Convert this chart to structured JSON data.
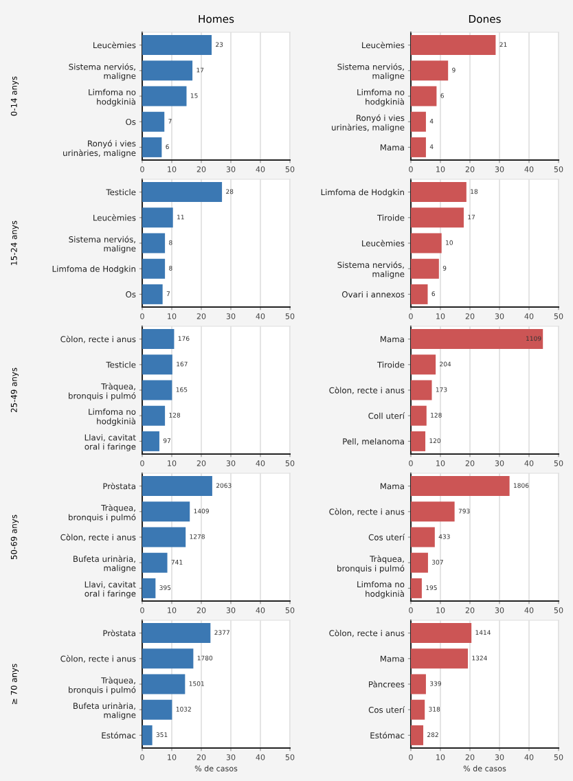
{
  "chart_data": [
    {
      "type": "bar",
      "orientation": "horizontal",
      "title": "Homes",
      "ylabel": "0-14 anys",
      "categories": [
        "Leucèmies",
        "Sistema nerviós,\nmaligne",
        "Limfoma no\nhodgkinià",
        "Os",
        "Ronyó i vies\nurinàries, maligne"
      ],
      "values": [
        23.5,
        17,
        15,
        7.5,
        6.6
      ],
      "color": "#3b78b3",
      "xlim": [
        0,
        50
      ],
      "xticks": [
        0,
        10,
        20,
        30,
        40,
        50
      ],
      "grid": "x",
      "annotations": [
        {
          "text": "23",
          "x": 23.5,
          "y": "Leucèmies"
        },
        {
          "text": "17",
          "x": 17,
          "y": "Sistema nerviós,\nmaligne"
        },
        {
          "text": "15",
          "x": 15,
          "y": "Limfoma no\nhodgkinià"
        },
        {
          "text": "7",
          "x": 7.5,
          "y": "Os"
        },
        {
          "text": "6",
          "x": 6.6,
          "y": "Ronyó i vies\nurinàries, maligne"
        }
      ]
    },
    {
      "type": "bar",
      "orientation": "horizontal",
      "title": "Dones",
      "categories": [
        "Leucèmies",
        "Sistema nerviós,\nmaligne",
        "Limfoma no\nhodgkinià",
        "Ronyó i vies\nurinàries, maligne",
        "Mama"
      ],
      "values": [
        28.7,
        12.6,
        8.7,
        5.1,
        5.1
      ],
      "color": "#cc5555",
      "xlim": [
        0,
        50
      ],
      "xticks": [
        0,
        10,
        20,
        30,
        40,
        50
      ],
      "grid": "x",
      "annotations": [
        {
          "text": "21",
          "x": 28.7,
          "y": "Leucèmies"
        },
        {
          "text": "9",
          "x": 12.6,
          "y": "Sistema nerviós,\nmaligne"
        },
        {
          "text": "6",
          "x": 8.7,
          "y": "Limfoma no\nhodgkinià"
        },
        {
          "text": "4",
          "x": 5.1,
          "y": "Ronyó i vies\nurinàries, maligne"
        },
        {
          "text": "4",
          "x": 5.1,
          "y": "Mama"
        }
      ]
    },
    {
      "type": "bar",
      "orientation": "horizontal",
      "ylabel": "15-24 anys",
      "categories": [
        "Testicle",
        "Leucèmies",
        "Sistema nerviós,\nmaligne",
        "Limfoma de Hodgkin",
        "Os"
      ],
      "values": [
        27,
        10.4,
        7.7,
        7.7,
        6.9
      ],
      "color": "#3b78b3",
      "xlim": [
        0,
        50
      ],
      "xticks": [
        0,
        10,
        20,
        30,
        40,
        50
      ],
      "grid": "x",
      "annotations": [
        {
          "text": "28",
          "x": 27,
          "y": "Testicle"
        },
        {
          "text": "11",
          "x": 10.4,
          "y": "Leucèmies"
        },
        {
          "text": "8",
          "x": 7.7,
          "y": "Sistema nerviós,\nmaligne"
        },
        {
          "text": "8",
          "x": 7.7,
          "y": "Limfoma de Hodgkin"
        },
        {
          "text": "7",
          "x": 6.9,
          "y": "Os"
        }
      ]
    },
    {
      "type": "bar",
      "orientation": "horizontal",
      "categories": [
        "Limfoma de Hodgkin",
        "Tiroide",
        "Leucèmies",
        "Sistema nerviós,\nmaligne",
        "Ovari i annexos"
      ],
      "values": [
        18.8,
        17.9,
        10.4,
        9.5,
        5.7
      ],
      "color": "#cc5555",
      "xlim": [
        0,
        50
      ],
      "xticks": [
        0,
        10,
        20,
        30,
        40,
        50
      ],
      "grid": "x",
      "annotations": [
        {
          "text": "18",
          "x": 18.8,
          "y": "Limfoma de Hodgkin"
        },
        {
          "text": "17",
          "x": 17.9,
          "y": "Tiroide"
        },
        {
          "text": "10",
          "x": 10.4,
          "y": "Leucèmies"
        },
        {
          "text": "9",
          "x": 9.5,
          "y": "Sistema nerviós,\nmaligne"
        },
        {
          "text": "6",
          "x": 5.7,
          "y": "Ovari i annexos"
        }
      ]
    },
    {
      "type": "bar",
      "orientation": "horizontal",
      "ylabel": "25-49 anys",
      "categories": [
        "Còlon, recte i anus",
        "Testicle",
        "Tràquea,\nbronquis i pulmó",
        "Limfoma no\nhodgkinià",
        "Llavi, cavitat\noral i faringe"
      ],
      "values": [
        10.8,
        10.2,
        10.1,
        7.7,
        5.8
      ],
      "color": "#3b78b3",
      "xlim": [
        0,
        50
      ],
      "xticks": [
        0,
        10,
        20,
        30,
        40,
        50
      ],
      "grid": "x",
      "annotations": [
        {
          "text": "176",
          "x": 10.8,
          "y": "Còlon, recte i anus"
        },
        {
          "text": "167",
          "x": 10.2,
          "y": "Testicle"
        },
        {
          "text": "165",
          "x": 10.1,
          "y": "Tràquea,\nbronquis i pulmó"
        },
        {
          "text": "128",
          "x": 7.7,
          "y": "Limfoma no\nhodgkinià"
        },
        {
          "text": "97",
          "x": 5.8,
          "y": "Llavi, cavitat\noral i faringe"
        }
      ]
    },
    {
      "type": "bar",
      "orientation": "horizontal",
      "categories": [
        "Mama",
        "Tiroide",
        "Còlon, recte i anus",
        "Coll uterí",
        "Pell, melanoma"
      ],
      "values": [
        44.7,
        8.4,
        7.1,
        5.3,
        4.9
      ],
      "color": "#cc5555",
      "xlim": [
        0,
        50
      ],
      "xticks": [
        0,
        10,
        20,
        30,
        40,
        50
      ],
      "grid": "x",
      "annotations": [
        {
          "text": "1109",
          "x": 44.7,
          "y": "Mama"
        },
        {
          "text": "204",
          "x": 8.4,
          "y": "Tiroide"
        },
        {
          "text": "173",
          "x": 7.1,
          "y": "Còlon, recte i anus"
        },
        {
          "text": "128",
          "x": 5.3,
          "y": "Coll uterí"
        },
        {
          "text": "120",
          "x": 4.9,
          "y": "Pell, melanoma"
        }
      ]
    },
    {
      "type": "bar",
      "orientation": "horizontal",
      "ylabel": "50-69 anys",
      "categories": [
        "Pròstata",
        "Tràquea,\nbronquis i pulmó",
        "Còlon, recte i anus",
        "Bufeta urinària,\nmaligne",
        "Llavi, cavitat\noral i faringe"
      ],
      "values": [
        23.7,
        16.1,
        14.7,
        8.5,
        4.5
      ],
      "color": "#3b78b3",
      "xlim": [
        0,
        50
      ],
      "xticks": [
        0,
        10,
        20,
        30,
        40,
        50
      ],
      "grid": "x",
      "annotations": [
        {
          "text": "2063",
          "x": 23.7,
          "y": "Pròstata"
        },
        {
          "text": "1409",
          "x": 16.1,
          "y": "Tràquea,\nbronquis i pulmó"
        },
        {
          "text": "1278",
          "x": 14.7,
          "y": "Còlon, recte i anus"
        },
        {
          "text": "741",
          "x": 8.5,
          "y": "Bufeta urinària,\nmaligne"
        },
        {
          "text": "395",
          "x": 4.5,
          "y": "Llavi, cavitat\noral i faringe"
        }
      ]
    },
    {
      "type": "bar",
      "orientation": "horizontal",
      "categories": [
        "Mama",
        "Còlon, recte i anus",
        "Cos uterí",
        "Tràquea,\nbronquis i pulmó",
        "Limfoma no\nhodgkinià"
      ],
      "values": [
        33.4,
        14.8,
        8.1,
        5.8,
        3.7
      ],
      "color": "#cc5555",
      "xlim": [
        0,
        50
      ],
      "xticks": [
        0,
        10,
        20,
        30,
        40,
        50
      ],
      "grid": "x",
      "annotations": [
        {
          "text": "1806",
          "x": 33.4,
          "y": "Mama"
        },
        {
          "text": "793",
          "x": 14.8,
          "y": "Còlon, recte i anus"
        },
        {
          "text": "433",
          "x": 8.1,
          "y": "Cos uterí"
        },
        {
          "text": "307",
          "x": 5.8,
          "y": "Tràquea,\nbronquis i pulmó"
        },
        {
          "text": "195",
          "x": 3.7,
          "y": "Limfoma no\nhodgkinià"
        }
      ]
    },
    {
      "type": "bar",
      "orientation": "horizontal",
      "ylabel": "≥ 70 anys",
      "xlabel": "% de casos",
      "categories": [
        "Pròstata",
        "Còlon, recte i anus",
        "Tràquea,\nbronquis i pulmó",
        "Bufeta urinària,\nmaligne",
        "Estómac"
      ],
      "values": [
        23.1,
        17.3,
        14.5,
        10.1,
        3.4
      ],
      "color": "#3b78b3",
      "xlim": [
        0,
        50
      ],
      "xticks": [
        0,
        10,
        20,
        30,
        40,
        50
      ],
      "grid": "x",
      "annotations": [
        {
          "text": "2377",
          "x": 23.1,
          "y": "Pròstata"
        },
        {
          "text": "1780",
          "x": 17.3,
          "y": "Còlon, recte i anus"
        },
        {
          "text": "1501",
          "x": 14.5,
          "y": "Tràquea,\nbronquis i pulmó"
        },
        {
          "text": "1032",
          "x": 10.1,
          "y": "Bufeta urinària,\nmaligne"
        },
        {
          "text": "351",
          "x": 3.4,
          "y": "Estómac"
        }
      ]
    },
    {
      "type": "bar",
      "orientation": "horizontal",
      "xlabel": "% de casos",
      "categories": [
        "Còlon, recte i anus",
        "Mama",
        "Pàncrees",
        "Cos uterí",
        "Estómac"
      ],
      "values": [
        20.5,
        19.3,
        5.1,
        4.7,
        4.2
      ],
      "color": "#cc5555",
      "xlim": [
        0,
        50
      ],
      "xticks": [
        0,
        10,
        20,
        30,
        40,
        50
      ],
      "grid": "x",
      "annotations": [
        {
          "text": "1414",
          "x": 20.5,
          "y": "Còlon, recte i anus"
        },
        {
          "text": "1324",
          "x": 19.3,
          "y": "Mama"
        },
        {
          "text": "339",
          "x": 5.1,
          "y": "Pàncrees"
        },
        {
          "text": "318",
          "x": 4.7,
          "y": "Cos uterí"
        },
        {
          "text": "282",
          "x": 4.2,
          "y": "Estómac"
        }
      ]
    }
  ]
}
